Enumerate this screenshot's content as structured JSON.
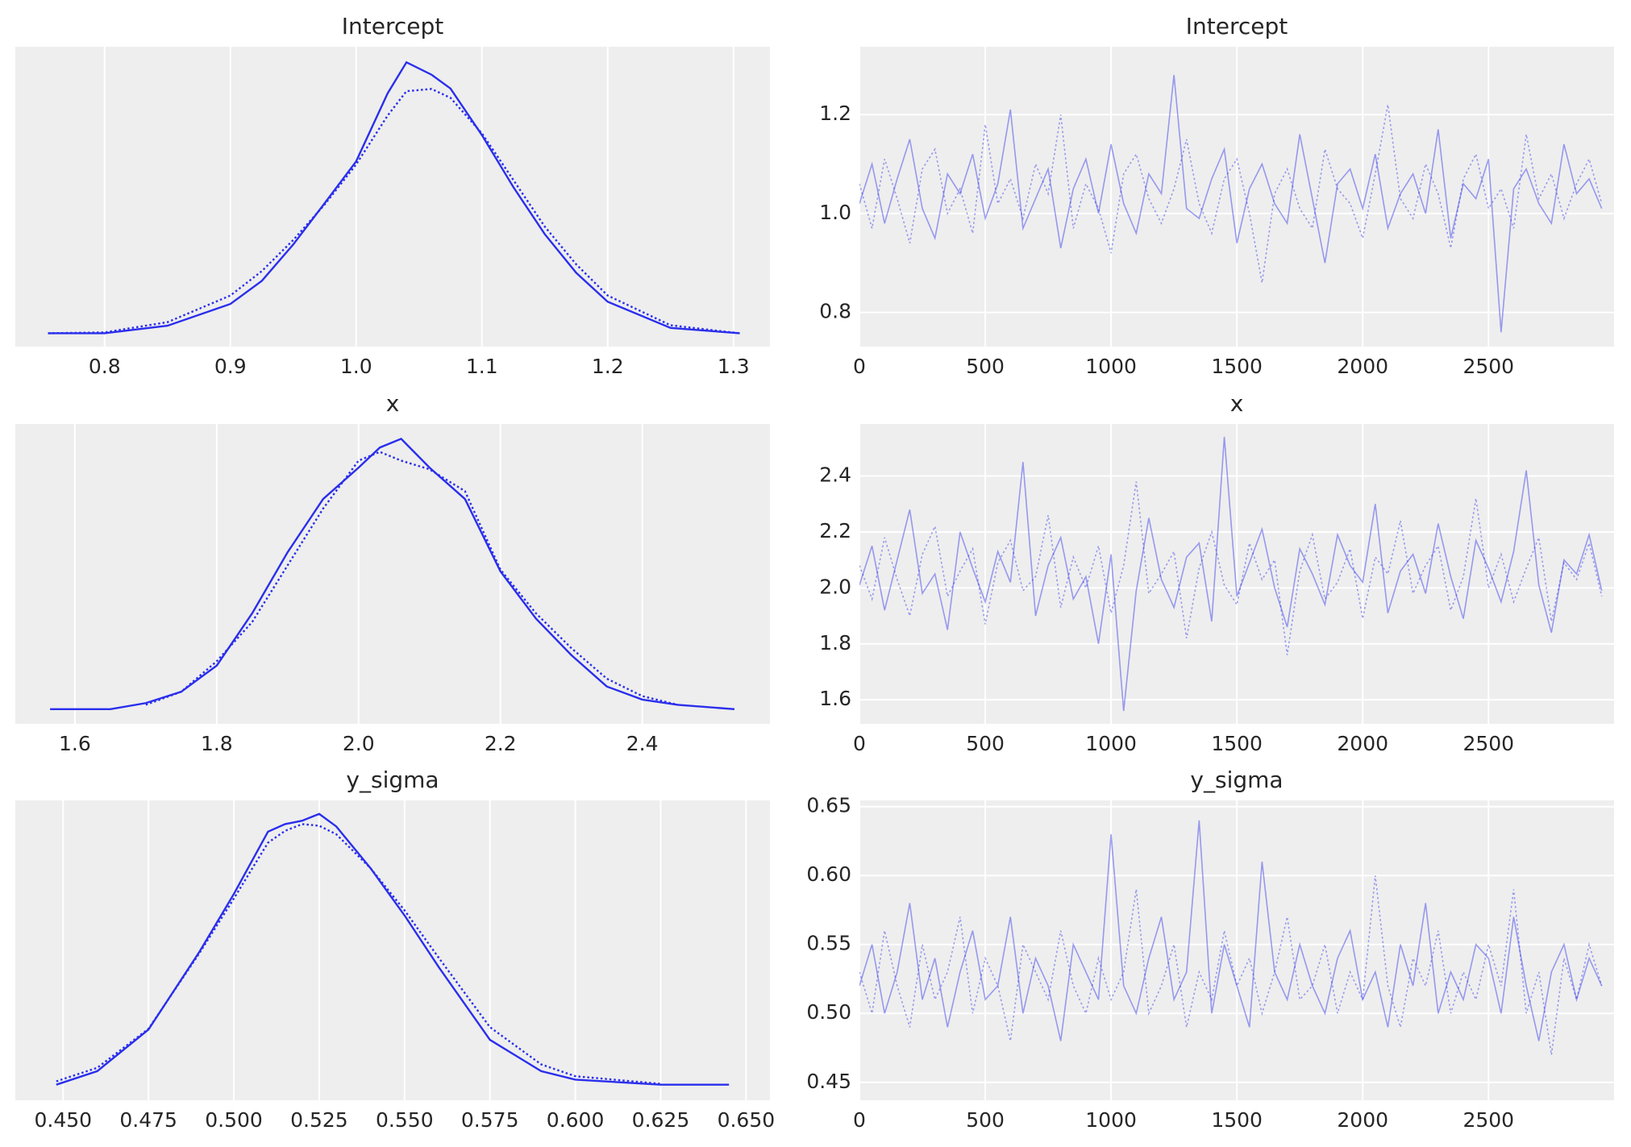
{
  "chart_data": [
    {
      "type": "kde",
      "title": "Intercept",
      "x": [
        0.755,
        0.8,
        0.85,
        0.9,
        0.925,
        0.95,
        0.975,
        1.0,
        1.025,
        1.04,
        1.06,
        1.075,
        1.1,
        1.125,
        1.15,
        1.175,
        1.2,
        1.25,
        1.305
      ],
      "series": [
        {
          "color": "#2a2eec",
          "linestyle": "solid",
          "values": [
            0,
            0,
            0.17,
            0.66,
            1.18,
            2.0,
            2.93,
            3.87,
            5.4,
            6.1,
            5.82,
            5.51,
            4.46,
            3.29,
            2.23,
            1.36,
            0.71,
            0.12,
            0
          ]
        },
        {
          "color": "#2a2eec",
          "linestyle": "dotted",
          "values": [
            0,
            0.02,
            0.25,
            0.85,
            1.4,
            2.1,
            2.9,
            3.8,
            4.9,
            5.45,
            5.5,
            5.3,
            4.5,
            3.45,
            2.4,
            1.55,
            0.85,
            0.18,
            0
          ]
        }
      ],
      "xlim": [
        0.729,
        1.329
      ],
      "xticks": [
        0.8,
        0.9,
        {
          "value": 1,
          "label": "1.0"
        },
        1.1,
        1.2,
        1.3
      ],
      "ylim": [
        -0.3,
        6.45
      ],
      "grid": "x"
    },
    {
      "type": "trace",
      "title": "Intercept",
      "x": [
        0,
        50,
        100,
        150,
        200,
        250,
        300,
        350,
        400,
        450,
        500,
        550,
        600,
        650,
        700,
        750,
        800,
        850,
        900,
        950,
        1000,
        1050,
        1100,
        1150,
        1200,
        1250,
        1300,
        1350,
        1400,
        1450,
        1500,
        1550,
        1600,
        1650,
        1700,
        1750,
        1800,
        1850,
        1900,
        1950,
        2000,
        2050,
        2100,
        2150,
        2200,
        2250,
        2300,
        2350,
        2400,
        2450,
        2500,
        2550,
        2600,
        2650,
        2700,
        2750,
        2800,
        2850,
        2900,
        2950
      ],
      "series": [
        {
          "color": "#2a2eec",
          "linestyle": "solid",
          "values": [
            1.02,
            1.1,
            0.98,
            1.07,
            1.15,
            1.01,
            0.95,
            1.08,
            1.04,
            1.12,
            0.99,
            1.06,
            1.21,
            0.97,
            1.03,
            1.09,
            0.93,
            1.05,
            1.11,
            1.0,
            1.14,
            1.02,
            0.96,
            1.08,
            1.04,
            1.28,
            1.01,
            0.99,
            1.07,
            1.13,
            0.94,
            1.05,
            1.1,
            1.02,
            0.98,
            1.16,
            1.03,
            0.9,
            1.06,
            1.09,
            1.01,
            1.12,
            0.97,
            1.04,
            1.08,
            1.0,
            1.17,
            0.95,
            1.06,
            1.03,
            1.11,
            0.76,
            1.05,
            1.09,
            1.02,
            0.98,
            1.14,
            1.04,
            1.07,
            1.01
          ]
        },
        {
          "color": "#2a2eec",
          "linestyle": "dotted",
          "values": [
            1.06,
            0.97,
            1.11,
            1.03,
            0.94,
            1.09,
            1.13,
            1.0,
            1.05,
            0.96,
            1.18,
            1.02,
            1.07,
            0.99,
            1.1,
            1.04,
            1.2,
            0.97,
            1.06,
            1.01,
            0.92,
            1.08,
            1.12,
            1.03,
            0.98,
            1.05,
            1.15,
            1.02,
            0.96,
            1.07,
            1.11,
            1.0,
            0.86,
            1.04,
            1.09,
            1.01,
            0.97,
            1.13,
            1.05,
            1.02,
            0.95,
            1.08,
            1.22,
            1.03,
            0.99,
            1.1,
            1.04,
            0.93,
            1.07,
            1.12,
            1.01,
            1.05,
            0.97,
            1.16,
            1.03,
            1.08,
            0.99,
            1.06,
            1.11,
            1.02
          ]
        }
      ],
      "xlim": [
        0,
        2999
      ],
      "xticks": [
        0,
        500,
        1000,
        1500,
        2000,
        2500
      ],
      "ylim": [
        0.731,
        1.337
      ],
      "yticks": [
        0.8,
        {
          "value": 1,
          "label": "1.0"
        },
        1.2
      ],
      "grid": "both"
    },
    {
      "type": "kde",
      "title": "x",
      "x": [
        1.565,
        1.65,
        1.7,
        1.75,
        1.8,
        1.85,
        1.9,
        1.95,
        2.0,
        2.03,
        2.06,
        2.1,
        2.15,
        2.2,
        2.25,
        2.3,
        2.35,
        2.4,
        2.45,
        2.53
      ],
      "series": [
        {
          "color": "#2a2eec",
          "linestyle": "solid",
          "values": [
            0,
            0,
            0.07,
            0.2,
            0.5,
            1.1,
            1.8,
            2.41,
            2.77,
            3.0,
            3.1,
            2.77,
            2.41,
            1.58,
            1.04,
            0.62,
            0.26,
            0.11,
            0.05,
            0
          ]
        },
        {
          "color": "#2a2eec",
          "linestyle": "dotted",
          "values": [
            null,
            null,
            0.05,
            0.2,
            0.55,
            1.0,
            1.65,
            2.3,
            2.85,
            2.95,
            2.85,
            2.75,
            2.5,
            1.6,
            1.1,
            0.7,
            0.35,
            0.15,
            0.05,
            null
          ]
        }
      ],
      "xlim": [
        1.516,
        2.58
      ],
      "xticks": [
        1.6,
        1.8,
        {
          "value": 2,
          "label": "2.0"
        },
        2.2,
        2.4
      ],
      "ylim": [
        -0.168,
        3.27
      ],
      "grid": "x"
    },
    {
      "type": "trace",
      "title": "x",
      "x": [
        0,
        50,
        100,
        150,
        200,
        250,
        300,
        350,
        400,
        450,
        500,
        550,
        600,
        650,
        700,
        750,
        800,
        850,
        900,
        950,
        1000,
        1050,
        1100,
        1150,
        1200,
        1250,
        1300,
        1350,
        1400,
        1450,
        1500,
        1550,
        1600,
        1650,
        1700,
        1750,
        1800,
        1850,
        1900,
        1950,
        2000,
        2050,
        2100,
        2150,
        2200,
        2250,
        2300,
        2350,
        2400,
        2450,
        2500,
        2550,
        2600,
        2650,
        2700,
        2750,
        2800,
        2850,
        2900,
        2950
      ],
      "series": [
        {
          "color": "#2a2eec",
          "linestyle": "solid",
          "values": [
            2.01,
            2.15,
            1.92,
            2.1,
            2.28,
            1.98,
            2.05,
            1.85,
            2.2,
            2.07,
            1.95,
            2.13,
            2.02,
            2.45,
            1.9,
            2.08,
            2.18,
            1.96,
            2.04,
            1.8,
            2.12,
            1.56,
            1.99,
            2.25,
            2.03,
            1.93,
            2.11,
            2.16,
            1.88,
            2.54,
            1.97,
            2.09,
            2.21,
            2.0,
            1.86,
            2.14,
            2.05,
            1.94,
            2.19,
            2.08,
            2.02,
            2.3,
            1.91,
            2.06,
            2.12,
            1.98,
            2.23,
            2.04,
            1.89,
            2.17,
            2.07,
            1.95,
            2.13,
            2.42,
            2.01,
            1.84,
            2.1,
            2.05,
            2.19,
            1.99
          ]
        },
        {
          "color": "#2a2eec",
          "linestyle": "dotted",
          "values": [
            2.08,
            1.96,
            2.18,
            2.03,
            1.9,
            2.12,
            2.22,
            1.97,
            2.06,
            2.14,
            1.87,
            2.09,
            2.17,
            1.99,
            2.04,
            2.26,
            1.93,
            2.11,
            2.0,
            2.15,
            1.91,
            2.08,
            2.38,
            1.98,
            2.05,
            2.13,
            1.82,
            2.07,
            2.2,
            2.01,
            1.94,
            2.16,
            2.03,
            2.1,
            1.76,
            2.06,
            2.19,
            1.96,
            2.02,
            2.14,
            1.89,
            2.11,
            2.05,
            2.24,
            1.98,
            2.08,
            2.15,
            1.92,
            2.04,
            2.32,
            2.0,
            2.12,
            1.95,
            2.07,
            2.18,
            1.88,
            2.09,
            2.03,
            2.16,
            1.97
          ]
        }
      ],
      "xlim": [
        0,
        2999
      ],
      "xticks": [
        0,
        500,
        1000,
        1500,
        2000,
        2500
      ],
      "ylim": [
        1.514,
        2.586
      ],
      "yticks": [
        1.6,
        1.8,
        {
          "value": 2,
          "label": "2.0"
        },
        2.2,
        2.4
      ],
      "grid": "both"
    },
    {
      "type": "kde",
      "title": "y_sigma",
      "x": [
        0.448,
        0.46,
        0.475,
        0.49,
        0.5,
        0.51,
        0.515,
        0.52,
        0.525,
        0.53,
        0.54,
        0.55,
        0.56,
        0.575,
        0.59,
        0.6,
        0.625,
        0.645
      ],
      "series": [
        {
          "color": "#2a2eec",
          "linestyle": "solid",
          "values": [
            0,
            0.8,
            3.26,
            7.88,
            11.27,
            14.95,
            15.4,
            15.6,
            16.0,
            15.26,
            12.8,
            10.0,
            6.95,
            2.65,
            0.8,
            0.3,
            0,
            0
          ]
        },
        {
          "color": "#2a2eec",
          "linestyle": "dotted",
          "values": [
            0.2,
            1.0,
            3.3,
            7.8,
            11.0,
            14.3,
            15.0,
            15.4,
            15.3,
            14.8,
            12.8,
            10.3,
            7.5,
            3.4,
            1.2,
            0.5,
            0.05,
            null
          ]
        }
      ],
      "xlim": [
        0.436,
        0.657
      ],
      "xticks": [
        {
          "value": 0.45,
          "label": "0.450"
        },
        0.475,
        {
          "value": 0.5,
          "label": "0.500"
        },
        0.525,
        {
          "value": 0.55,
          "label": "0.550"
        },
        0.575,
        {
          "value": 0.6,
          "label": "0.600"
        },
        0.625,
        {
          "value": 0.65,
          "label": "0.650"
        }
      ],
      "ylim": [
        -0.92,
        16.8
      ],
      "grid": "x"
    },
    {
      "type": "trace",
      "title": "y_sigma",
      "x": [
        0,
        50,
        100,
        150,
        200,
        250,
        300,
        350,
        400,
        450,
        500,
        550,
        600,
        650,
        700,
        750,
        800,
        850,
        900,
        950,
        1000,
        1050,
        1100,
        1150,
        1200,
        1250,
        1300,
        1350,
        1400,
        1450,
        1500,
        1550,
        1600,
        1650,
        1700,
        1750,
        1800,
        1850,
        1900,
        1950,
        2000,
        2050,
        2100,
        2150,
        2200,
        2250,
        2300,
        2350,
        2400,
        2450,
        2500,
        2550,
        2600,
        2650,
        2700,
        2750,
        2800,
        2850,
        2900,
        2950
      ],
      "series": [
        {
          "color": "#2a2eec",
          "linestyle": "solid",
          "values": [
            0.52,
            0.55,
            0.5,
            0.53,
            0.58,
            0.51,
            0.54,
            0.49,
            0.53,
            0.56,
            0.51,
            0.52,
            0.57,
            0.5,
            0.54,
            0.52,
            0.48,
            0.55,
            0.53,
            0.51,
            0.63,
            0.52,
            0.5,
            0.54,
            0.57,
            0.51,
            0.53,
            0.64,
            0.5,
            0.55,
            0.52,
            0.49,
            0.61,
            0.53,
            0.51,
            0.55,
            0.52,
            0.5,
            0.54,
            0.56,
            0.51,
            0.53,
            0.49,
            0.55,
            0.52,
            0.58,
            0.5,
            0.53,
            0.51,
            0.55,
            0.54,
            0.5,
            0.57,
            0.52,
            0.48,
            0.53,
            0.55,
            0.51,
            0.54,
            0.52
          ]
        },
        {
          "color": "#2a2eec",
          "linestyle": "dotted",
          "values": [
            0.53,
            0.5,
            0.56,
            0.52,
            0.49,
            0.55,
            0.51,
            0.53,
            0.57,
            0.5,
            0.54,
            0.52,
            0.48,
            0.55,
            0.53,
            0.51,
            0.56,
            0.52,
            0.5,
            0.54,
            0.51,
            0.53,
            0.59,
            0.5,
            0.52,
            0.55,
            0.49,
            0.53,
            0.51,
            0.56,
            0.52,
            0.54,
            0.5,
            0.53,
            0.57,
            0.51,
            0.52,
            0.55,
            0.5,
            0.53,
            0.51,
            0.6,
            0.52,
            0.49,
            0.54,
            0.52,
            0.56,
            0.5,
            0.53,
            0.51,
            0.55,
            0.52,
            0.59,
            0.5,
            0.53,
            0.47,
            0.54,
            0.51,
            0.55,
            0.52
          ]
        }
      ],
      "xlim": [
        0,
        2999
      ],
      "xticks": [
        0,
        500,
        1000,
        1500,
        2000,
        2500
      ],
      "ylim": [
        0.437,
        0.6545
      ],
      "yticks": [
        0.45,
        {
          "value": 0.5,
          "label": "0.50"
        },
        0.55,
        {
          "value": 0.6,
          "label": "0.60"
        },
        0.65
      ],
      "grid": "both"
    }
  ]
}
